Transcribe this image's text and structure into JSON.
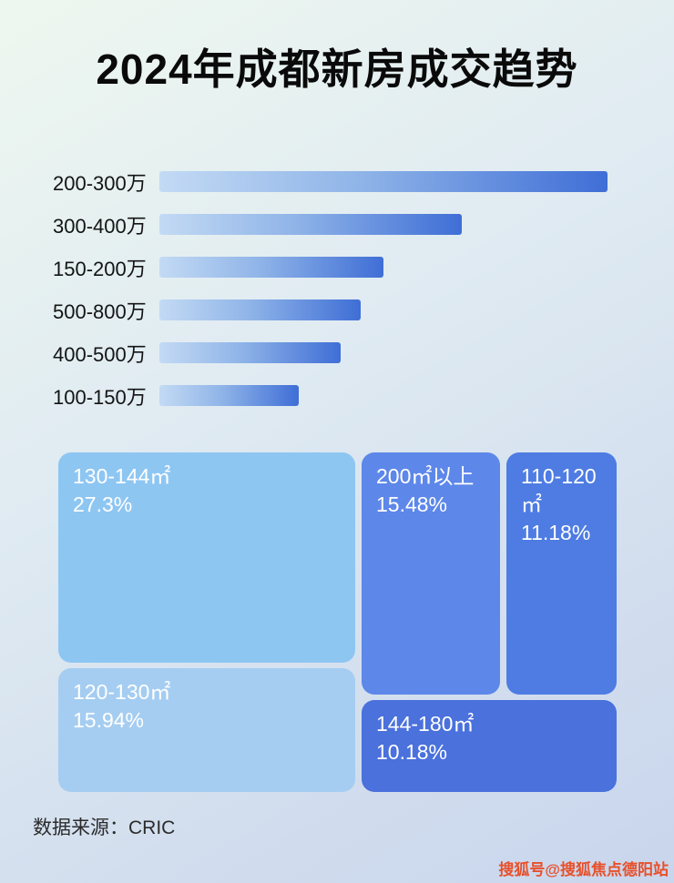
{
  "title": "2024年成都新房成交趋势",
  "chart_data": [
    {
      "type": "bar",
      "orientation": "horizontal",
      "title": "2024年成都新房成交趋势",
      "categories": [
        "200-300万",
        "300-400万",
        "150-200万",
        "500-800万",
        "400-500万",
        "100-150万"
      ],
      "values_relative": [
        100,
        67.5,
        50,
        45,
        40.5,
        31
      ],
      "note": "no numeric axis shown in image; values are relative bar lengths with longest bar = 100",
      "xlabel": "",
      "ylabel": "",
      "grid": false,
      "legend": false
    },
    {
      "type": "treemap",
      "items": [
        {
          "label": "130-144㎡",
          "pct": "27.3%",
          "value": 27.3
        },
        {
          "label": "200㎡以上",
          "pct": "15.48%",
          "value": 15.48
        },
        {
          "label": "110-120㎡",
          "pct": "11.18%",
          "value": 11.18
        },
        {
          "label": "120-130㎡",
          "pct": "15.94%",
          "value": 15.94
        },
        {
          "label": "144-180㎡",
          "pct": "10.18%",
          "value": 10.18
        }
      ]
    }
  ],
  "footer": {
    "source": "数据来源：CRIC"
  },
  "watermark": "搜狐号@搜狐焦点德阳站",
  "colors": {
    "background_top": "#eef7ef",
    "background_bottom": "#c9d5ec",
    "bar_gradient_start": "#c3daf4",
    "bar_gradient_end": "#3f6ed6",
    "block_130_144": "#8ec6f2",
    "block_200_plus": "#5d87e9",
    "block_110_120": "#4e7ce3",
    "block_120_130": "#a5cdf1",
    "block_144_180": "#4a71dc",
    "watermark_color": "#e8502a"
  }
}
